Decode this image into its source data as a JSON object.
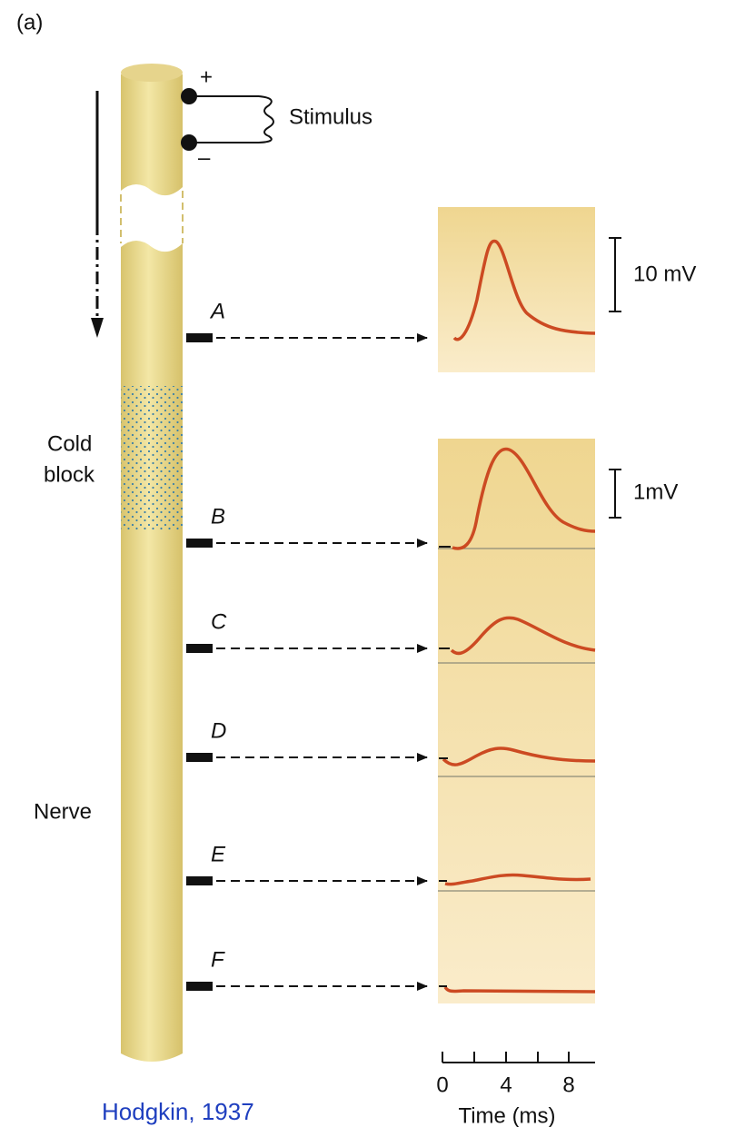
{
  "panel_label": "(a)",
  "stimulus": {
    "plus": "+",
    "minus": "–",
    "label": "Stimulus"
  },
  "labels": {
    "cold": "Cold",
    "block": "block",
    "nerve": "Nerve"
  },
  "electrodes": [
    "A",
    "B",
    "C",
    "D",
    "E",
    "F"
  ],
  "scale_bars": [
    "10 mV",
    "1mV"
  ],
  "time_axis": {
    "ticks": [
      "0",
      "4",
      "8"
    ],
    "label": "Time (ms)"
  },
  "citation": "Hodgkin, 1937"
}
